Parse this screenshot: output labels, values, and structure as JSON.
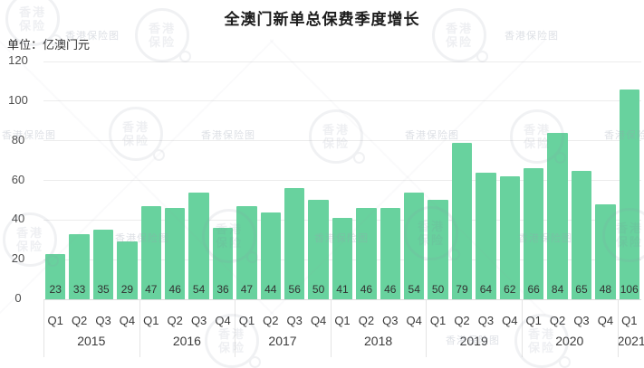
{
  "title": "全澳门新单总保费季度增长",
  "unit_label": "单位：亿澳门元",
  "watermark": {
    "stamp_line1": "香港",
    "stamp_line2": "保险",
    "text": "香港保险图"
  },
  "chart_data": {
    "type": "bar",
    "title": "全澳门新单总保费季度增长",
    "unit": "亿澳门元",
    "xlabel": "",
    "ylabel": "亿澳门元",
    "ylim": [
      0,
      120
    ],
    "yticks": [
      0,
      20,
      40,
      60,
      80,
      100,
      120
    ],
    "grid": true,
    "legend": "none",
    "bar_color": "#68d29e",
    "value_label_color": "#323232",
    "categories": [
      "2015 Q1",
      "2015 Q2",
      "2015 Q3",
      "2015 Q4",
      "2016 Q1",
      "2016 Q2",
      "2016 Q3",
      "2016 Q4",
      "2017 Q1",
      "2017 Q2",
      "2017 Q3",
      "2017 Q4",
      "2018 Q1",
      "2018 Q2",
      "2018 Q3",
      "2018 Q4",
      "2019 Q1",
      "2019 Q2",
      "2019 Q3",
      "2019 Q4",
      "2020 Q1",
      "2020 Q2",
      "2020 Q3",
      "2020 Q4",
      "2021 Q1"
    ],
    "values": [
      23,
      33,
      35,
      29,
      47,
      46,
      54,
      36,
      47,
      44,
      56,
      50,
      41,
      46,
      46,
      54,
      50,
      79,
      64,
      62,
      66,
      84,
      65,
      48,
      106
    ],
    "groups": [
      {
        "year": "2015",
        "quarters": [
          "Q1",
          "Q2",
          "Q3",
          "Q4"
        ],
        "values": [
          23,
          33,
          35,
          29
        ]
      },
      {
        "year": "2016",
        "quarters": [
          "Q1",
          "Q2",
          "Q3",
          "Q4"
        ],
        "values": [
          47,
          46,
          54,
          36
        ]
      },
      {
        "year": "2017",
        "quarters": [
          "Q1",
          "Q2",
          "Q3",
          "Q4"
        ],
        "values": [
          47,
          44,
          56,
          50
        ]
      },
      {
        "year": "2018",
        "quarters": [
          "Q1",
          "Q2",
          "Q3",
          "Q4"
        ],
        "values": [
          41,
          46,
          46,
          54
        ]
      },
      {
        "year": "2019",
        "quarters": [
          "Q1",
          "Q2",
          "Q3",
          "Q4"
        ],
        "values": [
          50,
          79,
          64,
          62
        ]
      },
      {
        "year": "2020",
        "quarters": [
          "Q1",
          "Q2",
          "Q3",
          "Q4"
        ],
        "values": [
          66,
          84,
          65,
          48
        ]
      },
      {
        "year": "2021",
        "quarters": [
          "Q1"
        ],
        "values": [
          106
        ]
      }
    ]
  }
}
